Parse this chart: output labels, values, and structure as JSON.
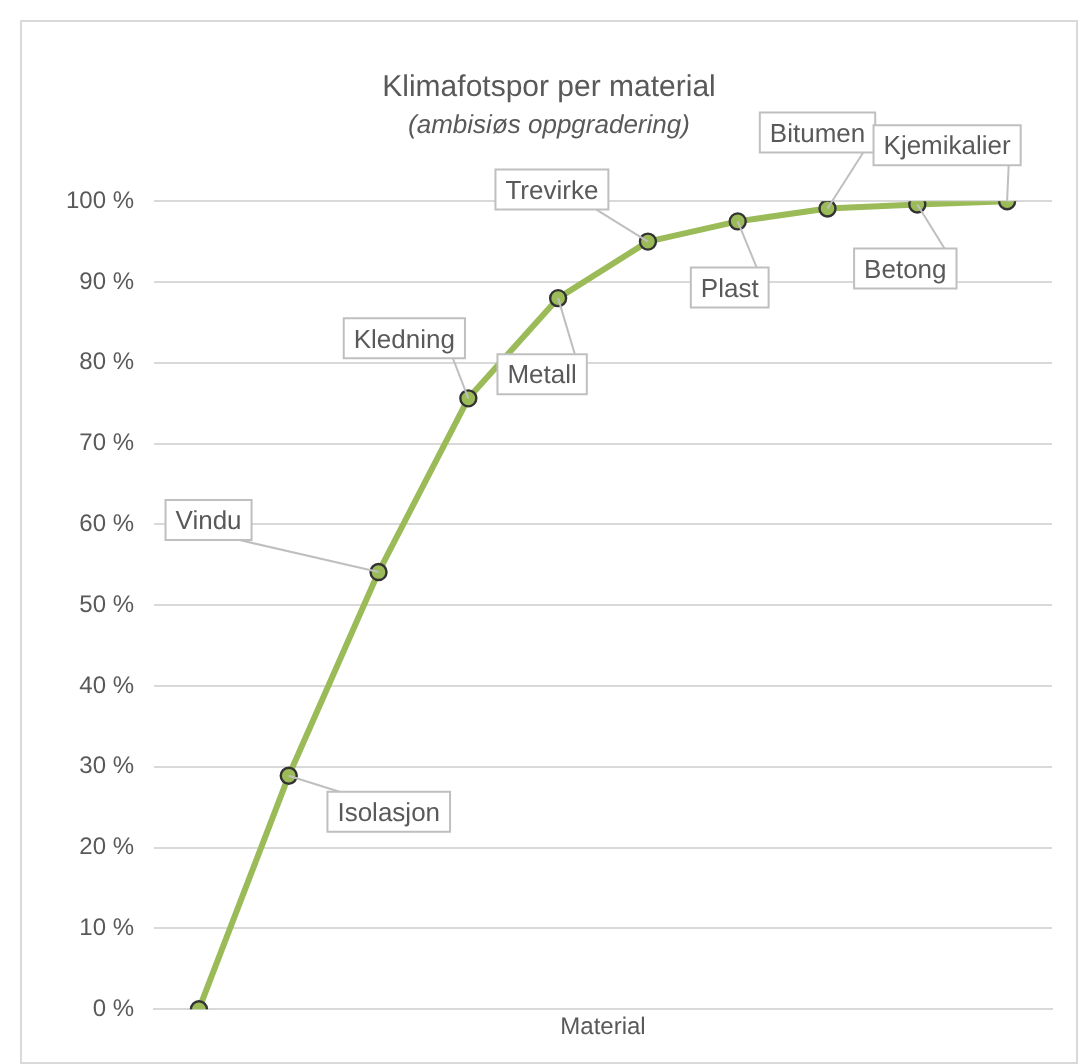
{
  "chart_data": {
    "type": "line",
    "title": "Klimafotspor per material",
    "subtitle": "(ambisiøs oppgradering)",
    "xlabel": "Material",
    "categories": [
      null,
      null,
      null,
      null,
      null,
      null,
      null,
      null,
      null,
      null
    ],
    "annotations": [
      "Isolasjon",
      "Vindu",
      "Kledning",
      "Metall",
      "Trevirke",
      "Plast",
      "Bitumen",
      "Betong",
      "Kjemikalier"
    ],
    "series": [
      {
        "color": "#9bbb59",
        "values": [
          0,
          28.9,
          54.1,
          75.6,
          88.0,
          95.0,
          97.5,
          99.1,
          99.6,
          100
        ]
      }
    ],
    "ylim": [
      0,
      100
    ],
    "yticks": [
      {
        "value": 0,
        "label": "0 %"
      },
      {
        "value": 10,
        "label": "10 %"
      },
      {
        "value": 20,
        "label": "20 %"
      },
      {
        "value": 30,
        "label": "30 %"
      },
      {
        "value": 40,
        "label": "40 %"
      },
      {
        "value": 50,
        "label": "50 %"
      },
      {
        "value": 60,
        "label": "60 %"
      },
      {
        "value": 70,
        "label": "70 %"
      },
      {
        "value": 80,
        "label": "80 %"
      },
      {
        "value": 90,
        "label": "90 %"
      },
      {
        "value": 100,
        "label": "100 %"
      }
    ],
    "grid": "y",
    "legend": false,
    "tick_labels": "y",
    "marker": "circle",
    "line_style": "solid"
  }
}
